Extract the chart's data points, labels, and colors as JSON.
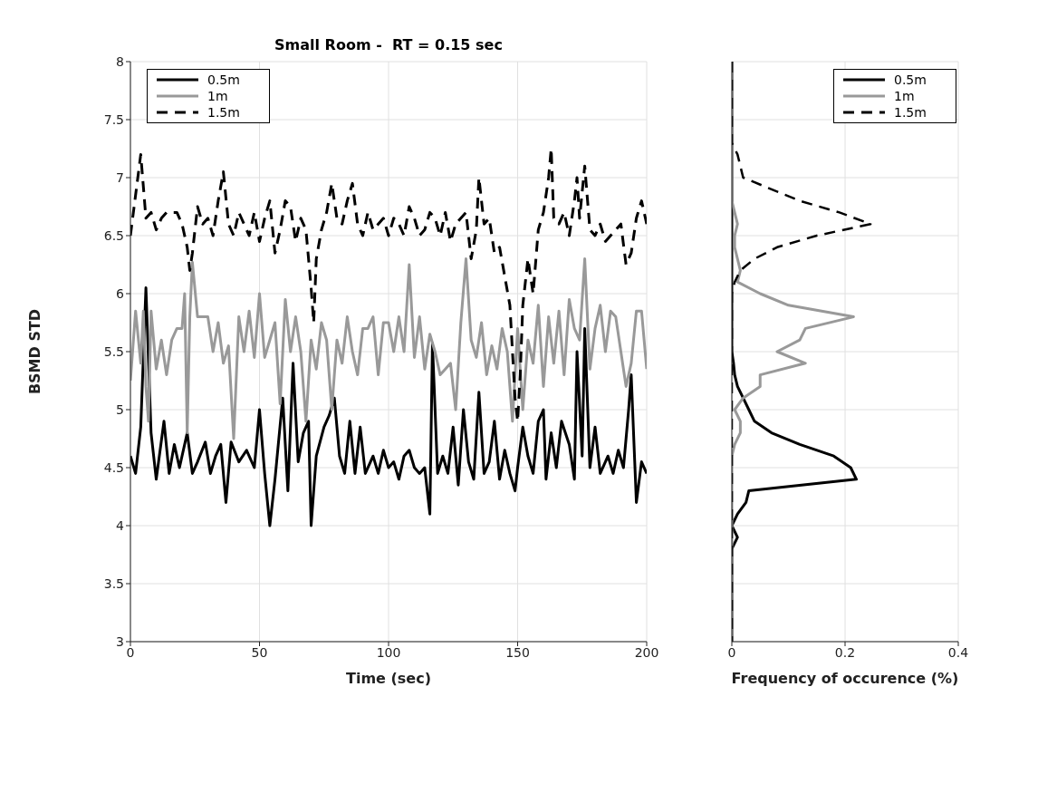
{
  "chart_data": [
    {
      "type": "line",
      "title": "Small Room -  RT = 0.15 sec",
      "xlabel": "Time (sec)",
      "ylabel": "BSMD STD",
      "xlim": [
        0,
        200
      ],
      "xticks": [
        0,
        50,
        100,
        150,
        200
      ],
      "ylim": [
        3,
        8
      ],
      "yticks": [
        3,
        3.5,
        4,
        4.5,
        5,
        5.5,
        6,
        6.5,
        7,
        7.5,
        8
      ],
      "grid": true,
      "legend": "top left",
      "series": [
        {
          "name": "0.5m",
          "color": "#000000",
          "line_style": "solid",
          "x": [
            0,
            2,
            4,
            6,
            8,
            10,
            13,
            15,
            17,
            19,
            22,
            24,
            26,
            29,
            31,
            33,
            35,
            37,
            39,
            42,
            45,
            48,
            50,
            52,
            54,
            56,
            59,
            61,
            63,
            65,
            67,
            69,
            70,
            72,
            75,
            77,
            79,
            81,
            83,
            85,
            87,
            89,
            91,
            94,
            96,
            98,
            100,
            102,
            104,
            106,
            108,
            110,
            112,
            114,
            116,
            117,
            119,
            121,
            123,
            125,
            127,
            129,
            131,
            133,
            135,
            137,
            139,
            141,
            143,
            145,
            147,
            149,
            150,
            152,
            154,
            156,
            158,
            160,
            161,
            163,
            165,
            167,
            170,
            172,
            173,
            175,
            176,
            178,
            180,
            182,
            185,
            187,
            189,
            191,
            193,
            194,
            196,
            198,
            200
          ],
          "values": [
            4.6,
            4.45,
            4.85,
            6.05,
            4.8,
            4.4,
            4.9,
            4.45,
            4.7,
            4.5,
            4.8,
            4.45,
            4.55,
            4.72,
            4.45,
            4.6,
            4.7,
            4.2,
            4.72,
            4.55,
            4.65,
            4.5,
            5.0,
            4.45,
            4.0,
            4.4,
            5.1,
            4.3,
            5.4,
            4.55,
            4.8,
            4.9,
            4.0,
            4.6,
            4.85,
            4.95,
            5.1,
            4.6,
            4.45,
            4.9,
            4.45,
            4.85,
            4.45,
            4.6,
            4.45,
            4.65,
            4.5,
            4.55,
            4.4,
            4.6,
            4.65,
            4.5,
            4.45,
            4.5,
            4.1,
            5.57,
            4.45,
            4.6,
            4.45,
            4.85,
            4.35,
            5.0,
            4.55,
            4.4,
            5.15,
            4.45,
            4.55,
            4.9,
            4.4,
            4.65,
            4.45,
            4.3,
            4.5,
            4.85,
            4.6,
            4.45,
            4.9,
            5.0,
            4.4,
            4.8,
            4.5,
            4.9,
            4.7,
            4.4,
            5.5,
            4.6,
            5.7,
            4.5,
            4.85,
            4.45,
            4.6,
            4.45,
            4.65,
            4.5,
            5.0,
            5.3,
            4.2,
            4.55,
            4.45
          ]
        },
        {
          "name": "1m",
          "color": "#999999",
          "line_style": "solid",
          "x": [
            0,
            2,
            4,
            5,
            6,
            7,
            8,
            10,
            12,
            14,
            16,
            18,
            20,
            21,
            22,
            23,
            24,
            26,
            28,
            30,
            32,
            34,
            36,
            38,
            40,
            42,
            44,
            46,
            48,
            50,
            52,
            54,
            56,
            58,
            60,
            62,
            64,
            66,
            68,
            70,
            72,
            74,
            76,
            78,
            80,
            82,
            84,
            86,
            88,
            90,
            92,
            94,
            96,
            98,
            100,
            102,
            104,
            106,
            108,
            110,
            112,
            114,
            116,
            118,
            120,
            122,
            124,
            126,
            128,
            130,
            132,
            134,
            136,
            138,
            140,
            142,
            144,
            146,
            148,
            150,
            152,
            154,
            156,
            158,
            160,
            162,
            164,
            166,
            168,
            170,
            172,
            174,
            176,
            178,
            180,
            182,
            184,
            186,
            188,
            190,
            192,
            194,
            196,
            198,
            200
          ],
          "values": [
            5.25,
            5.85,
            5.4,
            5.85,
            5.2,
            4.9,
            5.85,
            5.35,
            5.6,
            5.3,
            5.6,
            5.7,
            5.7,
            6.0,
            4.8,
            5.8,
            6.27,
            5.8,
            5.8,
            5.8,
            5.5,
            5.75,
            5.4,
            5.55,
            4.75,
            5.8,
            5.5,
            5.85,
            5.45,
            6.0,
            5.45,
            5.6,
            5.75,
            5.05,
            5.95,
            5.5,
            5.8,
            5.5,
            4.9,
            5.6,
            5.35,
            5.75,
            5.6,
            5.0,
            5.6,
            5.4,
            5.8,
            5.5,
            5.3,
            5.7,
            5.7,
            5.8,
            5.3,
            5.75,
            5.75,
            5.5,
            5.8,
            5.5,
            6.25,
            5.45,
            5.8,
            5.35,
            5.65,
            5.5,
            5.3,
            5.35,
            5.4,
            5.0,
            5.75,
            6.3,
            5.6,
            5.45,
            5.75,
            5.3,
            5.55,
            5.35,
            5.7,
            5.5,
            4.9,
            5.7,
            5.0,
            5.6,
            5.4,
            5.9,
            5.2,
            5.8,
            5.4,
            5.85,
            5.3,
            5.95,
            5.7,
            5.6,
            6.3,
            5.35,
            5.7,
            5.9,
            5.5,
            5.85,
            5.8,
            5.5,
            5.2,
            5.4,
            5.85,
            5.85,
            5.35
          ]
        },
        {
          "name": "1.5m",
          "color": "#000000",
          "line_style": "dashed",
          "x": [
            0,
            2,
            4,
            6,
            8,
            10,
            12,
            14,
            16,
            18,
            20,
            22,
            23,
            24,
            26,
            28,
            30,
            32,
            34,
            36,
            38,
            40,
            42,
            44,
            46,
            48,
            50,
            52,
            54,
            56,
            58,
            60,
            62,
            64,
            66,
            68,
            70,
            71,
            72,
            74,
            76,
            78,
            80,
            82,
            84,
            86,
            88,
            90,
            92,
            94,
            96,
            98,
            100,
            102,
            104,
            106,
            108,
            110,
            112,
            114,
            116,
            118,
            120,
            122,
            124,
            126,
            128,
            130,
            132,
            134,
            135,
            137,
            139,
            141,
            143,
            145,
            147,
            148,
            149,
            150,
            151,
            152,
            154,
            156,
            158,
            160,
            162,
            163,
            164,
            166,
            168,
            170,
            172,
            173,
            174,
            176,
            178,
            180,
            182,
            184,
            186,
            188,
            190,
            192,
            194,
            196,
            198,
            200
          ],
          "values": [
            6.5,
            6.85,
            7.2,
            6.65,
            6.7,
            6.55,
            6.65,
            6.7,
            6.7,
            6.7,
            6.6,
            6.4,
            6.2,
            6.35,
            6.75,
            6.6,
            6.65,
            6.5,
            6.8,
            7.05,
            6.6,
            6.5,
            6.7,
            6.6,
            6.5,
            6.7,
            6.45,
            6.65,
            6.8,
            6.35,
            6.55,
            6.8,
            6.75,
            6.45,
            6.65,
            6.55,
            6.05,
            5.75,
            6.3,
            6.55,
            6.7,
            6.95,
            6.65,
            6.6,
            6.8,
            6.95,
            6.6,
            6.5,
            6.7,
            6.55,
            6.6,
            6.65,
            6.5,
            6.65,
            6.6,
            6.5,
            6.75,
            6.65,
            6.5,
            6.55,
            6.7,
            6.65,
            6.5,
            6.7,
            6.45,
            6.6,
            6.65,
            6.7,
            6.3,
            6.55,
            7.0,
            6.6,
            6.65,
            6.35,
            6.4,
            6.15,
            5.9,
            5.5,
            5.1,
            4.9,
            5.3,
            5.9,
            6.3,
            6.0,
            6.55,
            6.7,
            7.0,
            7.25,
            6.65,
            6.6,
            6.7,
            6.5,
            6.8,
            7.0,
            6.65,
            7.1,
            6.55,
            6.5,
            6.6,
            6.45,
            6.5,
            6.55,
            6.6,
            6.25,
            6.35,
            6.65,
            6.8,
            6.6
          ]
        }
      ]
    },
    {
      "type": "line",
      "xlabel": "Frequency of occurence (%)",
      "xlim": [
        0,
        0.4
      ],
      "xticks": [
        0,
        0.2,
        0.4
      ],
      "ylim": [
        3,
        8
      ],
      "yticks": [
        3,
        3.5,
        4,
        4.5,
        5,
        5.5,
        6,
        6.5,
        7,
        7.5,
        8
      ],
      "tick_labels": "x",
      "grid": true,
      "legend": "top right",
      "series": [
        {
          "name": "0.5m",
          "color": "#000000",
          "line_style": "solid",
          "x": [
            0,
            0,
            0.003,
            0.005,
            0.01,
            0.02,
            0.03,
            0.04,
            0.07,
            0.12,
            0.18,
            0.21,
            0.22,
            0.03,
            0.025,
            0.01,
            0,
            0.01,
            0,
            0
          ],
          "values": [
            8,
            5.5,
            5.4,
            5.3,
            5.2,
            5.1,
            5.0,
            4.9,
            4.8,
            4.7,
            4.6,
            4.5,
            4.4,
            4.3,
            4.2,
            4.1,
            4.0,
            3.9,
            3.8,
            3
          ]
        },
        {
          "name": "1m",
          "color": "#999999",
          "line_style": "solid",
          "x": [
            0,
            0,
            0.01,
            0.005,
            0.005,
            0.01,
            0.015,
            0.01,
            0.05,
            0.1,
            0.215,
            0.13,
            0.12,
            0.08,
            0.13,
            0.05,
            0.05,
            0.02,
            0.005,
            0.015,
            0.015,
            0.005,
            0,
            0
          ],
          "values": [
            8,
            6.8,
            6.6,
            6.5,
            6.4,
            6.3,
            6.2,
            6.1,
            6.0,
            5.9,
            5.8,
            5.7,
            5.6,
            5.5,
            5.4,
            5.3,
            5.2,
            5.1,
            5.0,
            4.9,
            4.8,
            4.7,
            4.6,
            3
          ]
        },
        {
          "name": "1.5m",
          "color": "#000000",
          "line_style": "dashed",
          "x": [
            0,
            0,
            0.01,
            0.02,
            0.07,
            0.12,
            0.19,
            0.245,
            0.15,
            0.08,
            0.04,
            0.015,
            0.005,
            0,
            0
          ],
          "values": [
            8,
            7.3,
            7.2,
            7.0,
            6.9,
            6.8,
            6.7,
            6.6,
            6.5,
            6.4,
            6.3,
            6.2,
            6.1,
            6.0,
            3
          ]
        }
      ]
    }
  ]
}
